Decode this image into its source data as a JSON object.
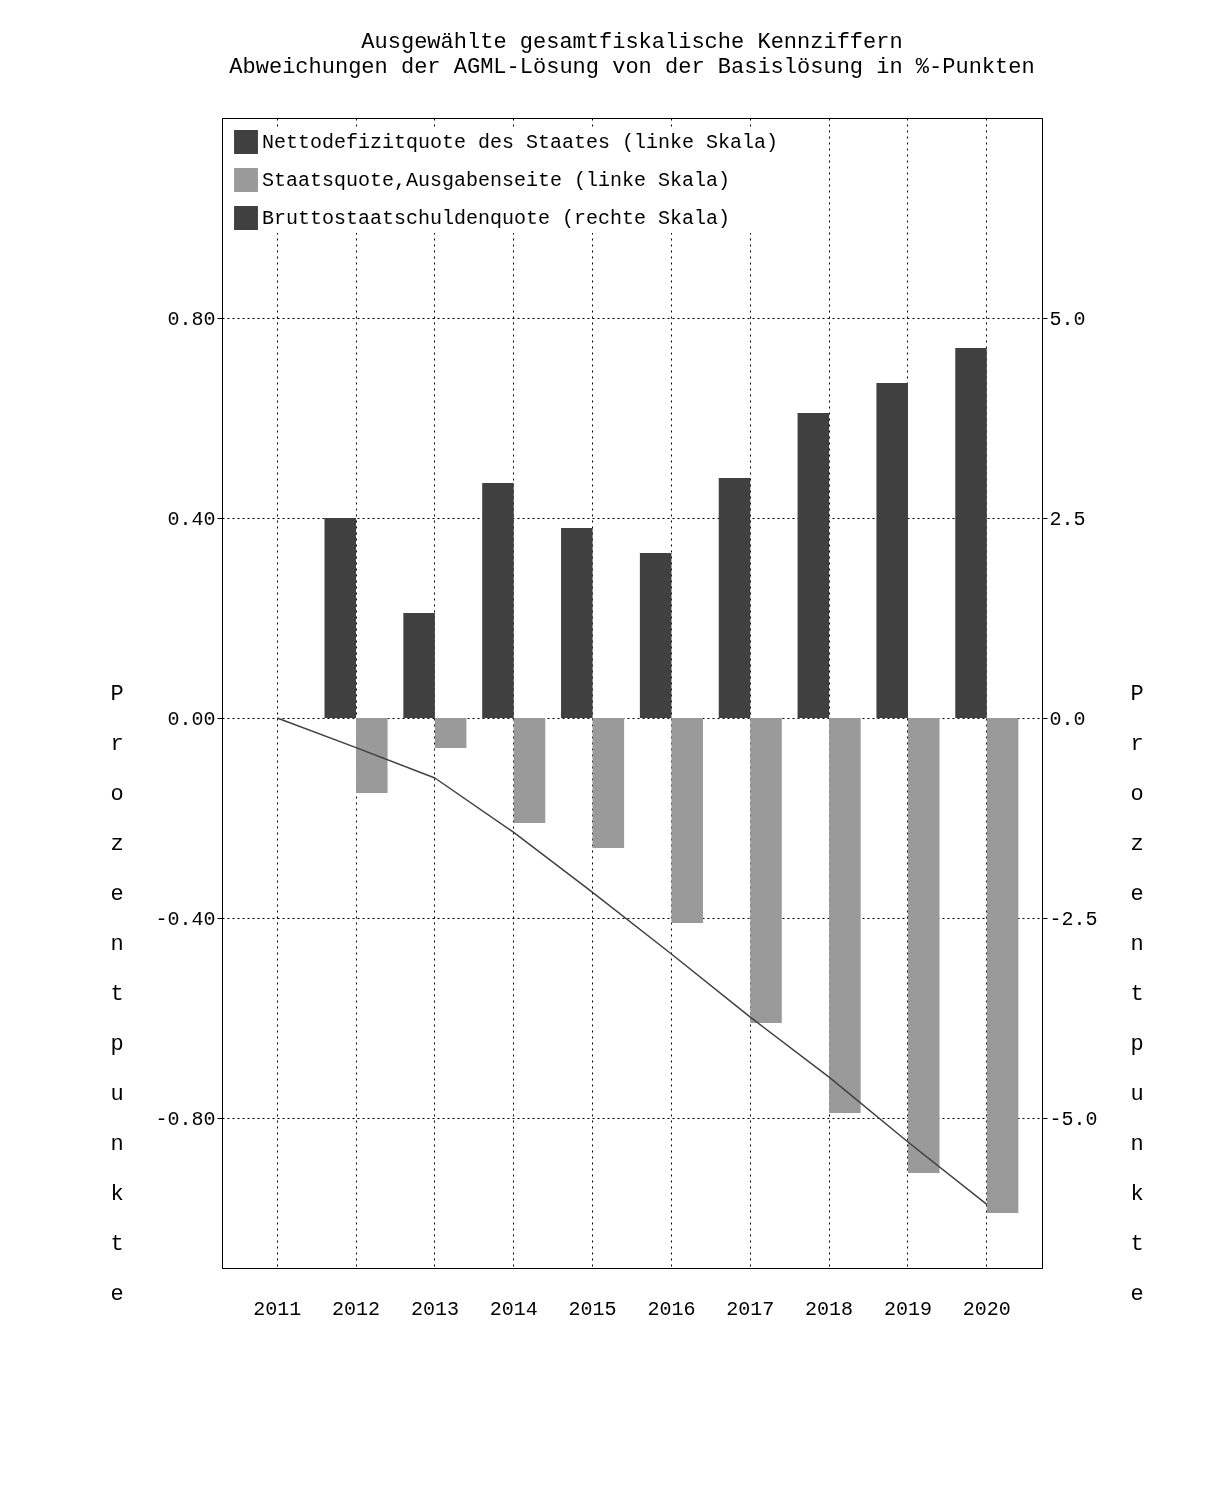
{
  "chart_data": {
    "type": "bar",
    "title": "Ausgewählte gesamtfiskalische Kennziffern",
    "subtitle": "Abweichungen der AGML-Lösung von der Basislösung in %-Punkten",
    "ylabel": "Prozentpunkte",
    "y2label": "Prozentpunkte",
    "categories": [
      "2011",
      "2012",
      "2013",
      "2014",
      "2015",
      "2016",
      "2017",
      "2018",
      "2019",
      "2020"
    ],
    "series": [
      {
        "name": "Nettodefizitquote des Staates (linke Skala)",
        "color": "#404040",
        "type": "bar",
        "values": [
          0,
          0.4,
          0.21,
          0.47,
          0.38,
          0.33,
          0.48,
          0.61,
          0.67,
          0.74
        ]
      },
      {
        "name": "Staatsquote,Ausgabenseite (linke Skala)",
        "color": "#9a9a9a",
        "type": "bar",
        "values": [
          0,
          -0.15,
          -0.06,
          -0.21,
          -0.26,
          -0.41,
          -0.61,
          -0.79,
          -0.91,
          -0.99
        ]
      },
      {
        "name": "Bruttostaatschuldenquote (rechte Skala)",
        "color": "#404040",
        "type": "line",
        "axis": "y2",
        "values": [
          0,
          -0.37,
          -0.75,
          -1.43,
          -2.18,
          -2.95,
          -3.74,
          -4.49,
          -5.3,
          -6.08
        ]
      }
    ],
    "ylim": [
      -1.1,
      1.2
    ],
    "yticks": [
      {
        "value": -0.8,
        "label": "-0.80"
      },
      {
        "value": -0.4,
        "label": "-0.40"
      },
      {
        "value": 0,
        "label": "0.00"
      },
      {
        "value": 0.4,
        "label": "0.40"
      },
      {
        "value": 0.8,
        "label": "0.80"
      }
    ],
    "y2lim": [
      -6.875,
      7.5
    ],
    "y2ticks": [
      {
        "value": -5,
        "label": "-5.0"
      },
      {
        "value": -2.5,
        "label": "-2.5"
      },
      {
        "value": 0,
        "label": "0.0"
      },
      {
        "value": 2.5,
        "label": "2.5"
      },
      {
        "value": 5,
        "label": "5.0"
      }
    ],
    "grid": true,
    "legend": "top left",
    "line_style": "solid"
  }
}
